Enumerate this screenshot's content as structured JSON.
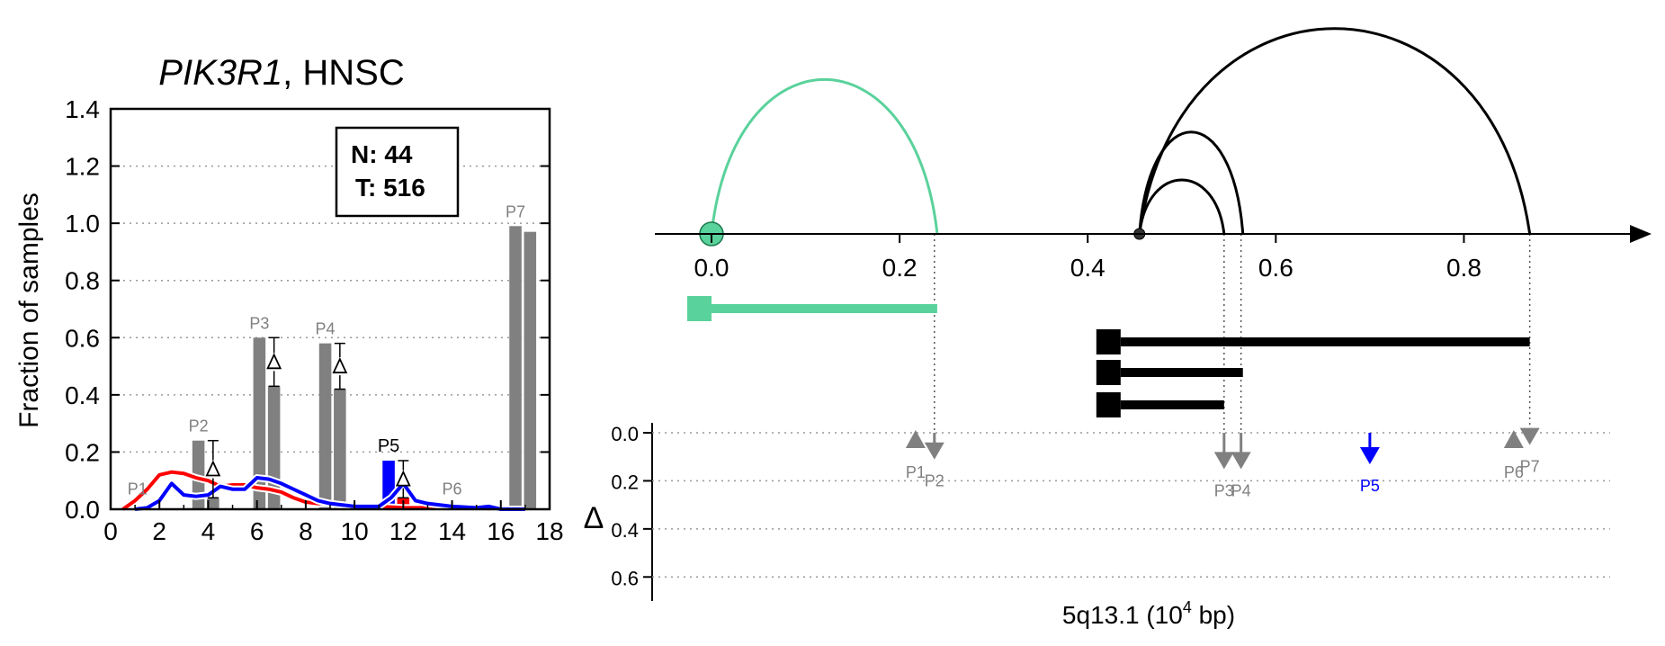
{
  "chart_data": [
    {
      "type": "bar",
      "title_gene": "PIK3R1",
      "title_rest": ", HNSC",
      "ylabel": "Fraction of samples",
      "xlim": [
        0,
        18
      ],
      "ylim": [
        0,
        1.4
      ],
      "xticks": [
        "0",
        "2",
        "4",
        "6",
        "8",
        "10",
        "12",
        "14",
        "16",
        "18"
      ],
      "yticks": [
        "0.0",
        "0.2",
        "0.4",
        "0.6",
        "0.8",
        "1.0",
        "1.2",
        "1.4"
      ],
      "grid": "horizontal dotted",
      "legend_box": {
        "line1": "N: 44",
        "line2": "T: 516",
        "placement": "top-right"
      },
      "colors": {
        "normal_bar": "#808080",
        "tumor_bar": "#808080",
        "highlight": "#0000ff",
        "tumor_curve": "#ff0000",
        "normal_curve": "#0000ff"
      },
      "promoters": [
        {
          "label": "P1",
          "x_label": 1.1,
          "bars": []
        },
        {
          "label": "P2",
          "x_label": 3.6,
          "bars": [
            {
              "x": 3.6,
              "value": 0.24
            },
            {
              "x": 4.2,
              "value": 0.04
            }
          ],
          "delta": {
            "x": 4.2,
            "low": 0.04,
            "high": 0.24
          }
        },
        {
          "label": "P3",
          "x_label": 6.1,
          "bars": [
            {
              "x": 6.1,
              "value": 0.6
            },
            {
              "x": 6.7,
              "value": 0.43
            }
          ],
          "delta": {
            "x": 6.7,
            "low": 0.43,
            "high": 0.6
          }
        },
        {
          "label": "P4",
          "x_label": 8.8,
          "bars": [
            {
              "x": 8.8,
              "value": 0.58
            },
            {
              "x": 9.4,
              "value": 0.42
            }
          ],
          "delta": {
            "x": 9.4,
            "low": 0.42,
            "high": 0.58
          }
        },
        {
          "label": "P5",
          "x_label": 11.4,
          "highlight": true,
          "bars": [
            {
              "x": 11.4,
              "value": 0.17,
              "color": "blue"
            },
            {
              "x": 12.0,
              "value": 0.04,
              "color": "red"
            }
          ],
          "delta": {
            "x": 12.0,
            "low": 0.04,
            "high": 0.17
          }
        },
        {
          "label": "P6",
          "x_label": 14.0,
          "bars": []
        },
        {
          "label": "P7",
          "x_label": 16.6,
          "bars": [
            {
              "x": 16.6,
              "value": 0.99
            },
            {
              "x": 17.2,
              "value": 0.97
            }
          ]
        }
      ],
      "series": [
        {
          "color": "red",
          "x": [
            0.5,
            1.0,
            1.5,
            2.0,
            2.5,
            3.0,
            3.5,
            4.0,
            4.5,
            5.0,
            5.5,
            6.0,
            6.5,
            7.0,
            7.5,
            8.0,
            8.5,
            9.0,
            9.5,
            10.0,
            11.0,
            12.0,
            13.0,
            14.0,
            15.0,
            16.0,
            17.0
          ],
          "y": [
            0.0,
            0.03,
            0.07,
            0.12,
            0.13,
            0.125,
            0.11,
            0.1,
            0.08,
            0.085,
            0.085,
            0.075,
            0.07,
            0.06,
            0.04,
            0.025,
            0.02,
            0.02,
            0.015,
            0.01,
            0.01,
            0.005,
            0.005,
            0.005,
            0.005,
            0.0,
            0.0
          ]
        },
        {
          "color": "blue",
          "x": [
            1.0,
            1.5,
            2.0,
            2.5,
            3.0,
            3.5,
            4.0,
            4.5,
            5.0,
            5.5,
            6.0,
            6.5,
            7.0,
            7.5,
            8.0,
            8.5,
            9.0,
            9.5,
            10.0,
            10.5,
            11.0,
            11.5,
            12.0,
            12.5,
            13.0,
            14.0,
            15.0,
            15.5,
            16.0,
            17.0
          ],
          "y": [
            0.0,
            0.005,
            0.03,
            0.09,
            0.05,
            0.045,
            0.05,
            0.08,
            0.07,
            0.07,
            0.11,
            0.105,
            0.09,
            0.07,
            0.05,
            0.03,
            0.02,
            0.015,
            0.01,
            0.01,
            0.01,
            0.04,
            0.09,
            0.03,
            0.02,
            0.01,
            0.005,
            0.01,
            0.0,
            0.0
          ]
        }
      ]
    },
    {
      "type": "arc-diagram",
      "xlim": [
        0.0,
        0.9
      ],
      "xticks": [
        "0.0",
        "0.2",
        "0.4",
        "0.6",
        "0.8"
      ],
      "arcs": [
        {
          "start": 0.0,
          "end": 0.24,
          "color": "#5ad29b",
          "height": 1.0
        },
        {
          "start": 0.455,
          "end": 0.565,
          "color": "#000000",
          "height": 0.66
        },
        {
          "start": 0.455,
          "end": 0.545,
          "color": "#000000",
          "height": 0.35
        },
        {
          "start": 0.455,
          "end": 0.87,
          "color": "#000000",
          "height": 1.33
        }
      ],
      "transcripts": [
        {
          "start": 0.0,
          "end": 0.24,
          "color": "#5ad29b"
        },
        {
          "start": 0.435,
          "end": 0.87,
          "color": "#000000"
        },
        {
          "start": 0.435,
          "end": 0.565,
          "color": "#000000"
        },
        {
          "start": 0.435,
          "end": 0.545,
          "color": "#000000"
        }
      ]
    },
    {
      "type": "scatter",
      "ylabel": "Δ",
      "xlabel_main": "5q13.1 (10",
      "xlabel_sup": "4",
      "xlabel_end": " bp)",
      "ylim": [
        0.0,
        0.7
      ],
      "yticks": [
        "0.0",
        "0.2",
        "0.4",
        "0.6"
      ],
      "markers": [
        {
          "label": "P1",
          "x": 0.217,
          "delta": 0.04,
          "direction": "up",
          "color": "#808080"
        },
        {
          "label": "P2",
          "x": 0.237,
          "delta": 0.1,
          "direction": "down",
          "color": "#808080"
        },
        {
          "label": "P3",
          "x": 0.545,
          "delta": 0.14,
          "direction": "down",
          "color": "#808080"
        },
        {
          "label": "P4",
          "x": 0.563,
          "delta": 0.14,
          "direction": "down",
          "color": "#808080"
        },
        {
          "label": "P5",
          "x": 0.7,
          "delta": 0.12,
          "direction": "down",
          "color": "#0000ff"
        },
        {
          "label": "P6",
          "x": 0.853,
          "delta": 0.04,
          "direction": "up",
          "color": "#808080"
        },
        {
          "label": "P7",
          "x": 0.87,
          "delta": 0.04,
          "direction": "down",
          "color": "#808080"
        }
      ]
    }
  ]
}
